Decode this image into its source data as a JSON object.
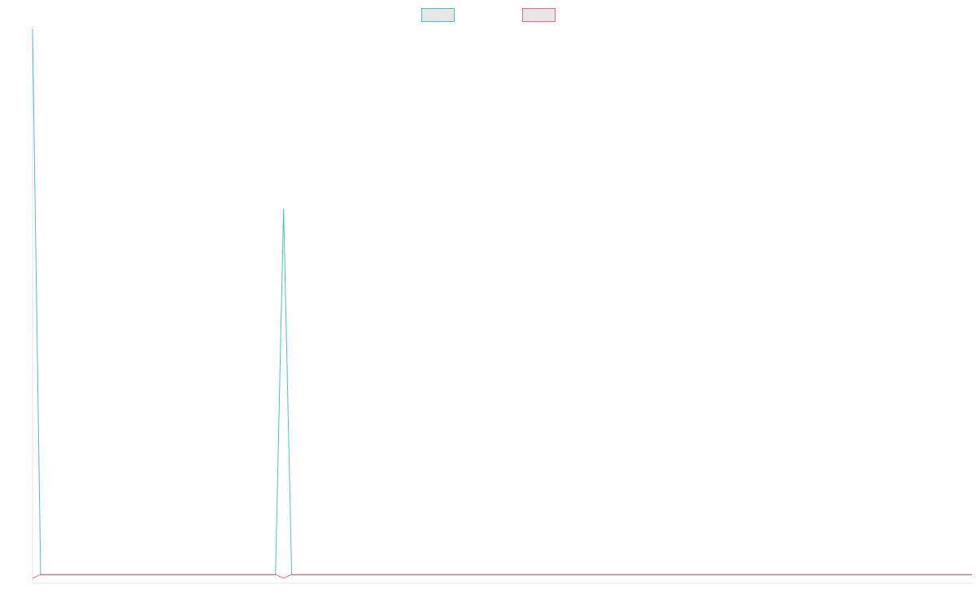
{
  "chart_data": {
    "type": "line",
    "title": "",
    "xlabel": "",
    "ylabel": "",
    "legend_position": "top-center",
    "grid": false,
    "x": [
      0,
      1,
      2,
      3,
      4,
      5,
      6,
      7,
      8,
      9,
      10,
      11,
      12,
      13,
      14,
      15,
      16,
      17,
      18,
      19,
      20,
      21,
      22,
      23,
      24,
      25,
      26,
      27,
      28,
      29,
      30,
      31,
      32,
      33,
      34,
      35,
      36,
      37,
      38,
      39,
      40,
      41,
      42,
      43,
      44,
      45,
      46,
      47,
      48,
      49,
      50,
      51,
      52,
      53,
      54,
      55,
      56,
      57,
      58,
      59,
      60,
      61,
      62,
      63,
      64,
      65,
      66,
      67,
      68,
      69,
      70,
      71,
      72,
      73,
      74,
      75,
      76,
      77,
      78,
      79,
      80,
      81,
      82,
      83,
      84,
      85,
      86,
      87,
      88,
      89,
      90,
      91,
      92,
      93,
      94,
      95,
      96,
      97,
      98,
      99,
      100,
      101,
      102,
      103,
      104,
      105,
      106,
      107,
      108,
      109,
      110,
      111,
      112,
      113,
      114,
      115,
      116
    ],
    "xlim": [
      0,
      116
    ],
    "ylim": [
      -1,
      100
    ],
    "series": [
      {
        "color": "#4bc0c0",
        "values": [
          100,
          0.5,
          0.5,
          0.5,
          0.5,
          0.5,
          0.5,
          0.5,
          0.5,
          0.5,
          0.5,
          0.5,
          0.5,
          0.5,
          0.5,
          0.5,
          0.5,
          0.5,
          0.5,
          0.5,
          0.5,
          0.5,
          0.5,
          0.5,
          0.5,
          0.5,
          0.5,
          0.5,
          0.5,
          0.5,
          0.5,
          67.3,
          0.5,
          0.5,
          0.5,
          0.5,
          0.5,
          0.5,
          0.5,
          0.5,
          0.5,
          0.5,
          0.5,
          0.5,
          0.5,
          0.5,
          0.5,
          0.5,
          0.5,
          0.5,
          0.5,
          0.5,
          0.5,
          0.5,
          0.5,
          0.5,
          0.5,
          0.5,
          0.5,
          0.5,
          0.5,
          0.5,
          0.5,
          0.5,
          0.5,
          0.5,
          0.5,
          0.5,
          0.5,
          0.5,
          0.5,
          0.5,
          0.5,
          0.5,
          0.5,
          0.5,
          0.5,
          0.5,
          0.5,
          0.5,
          0.5,
          0.5,
          0.5,
          0.5,
          0.5,
          0.5,
          0.5,
          0.5,
          0.5,
          0.5,
          0.5,
          0.5,
          0.5,
          0.5,
          0.5,
          0.5,
          0.5,
          0.5,
          0.5,
          0.5,
          0.5,
          0.5,
          0.5,
          0.5,
          0.5,
          0.5,
          0.5,
          0.5,
          0.5,
          0.5,
          0.5,
          0.5,
          0.5,
          0.5,
          0.5,
          0.5,
          0.5
        ]
      },
      {
        "color": "#ff6384",
        "values": [
          -0.1,
          0.6,
          0.6,
          0.6,
          0.6,
          0.6,
          0.6,
          0.6,
          0.6,
          0.6,
          0.6,
          0.6,
          0.6,
          0.6,
          0.6,
          0.6,
          0.6,
          0.6,
          0.6,
          0.6,
          0.6,
          0.6,
          0.6,
          0.6,
          0.6,
          0.6,
          0.6,
          0.6,
          0.6,
          0.6,
          0.6,
          -0.1,
          0.6,
          0.6,
          0.6,
          0.6,
          0.6,
          0.6,
          0.6,
          0.6,
          0.6,
          0.6,
          0.6,
          0.6,
          0.6,
          0.6,
          0.6,
          0.6,
          0.6,
          0.6,
          0.6,
          0.6,
          0.6,
          0.6,
          0.6,
          0.6,
          0.6,
          0.6,
          0.6,
          0.6,
          0.6,
          0.6,
          0.6,
          0.6,
          0.6,
          0.6,
          0.6,
          0.6,
          0.6,
          0.6,
          0.6,
          0.6,
          0.6,
          0.6,
          0.6,
          0.6,
          0.6,
          0.6,
          0.6,
          0.6,
          0.6,
          0.6,
          0.6,
          0.6,
          0.6,
          0.6,
          0.6,
          0.6,
          0.6,
          0.6,
          0.6,
          0.6,
          0.6,
          0.6,
          0.6,
          0.6,
          0.6,
          0.6,
          0.6,
          0.6,
          0.6,
          0.6,
          0.6,
          0.6,
          0.6,
          0.6,
          0.6,
          0.6,
          0.6,
          0.6,
          0.6,
          0.6,
          0.6,
          0.6,
          0.6,
          0.6,
          0.6
        ]
      }
    ]
  }
}
